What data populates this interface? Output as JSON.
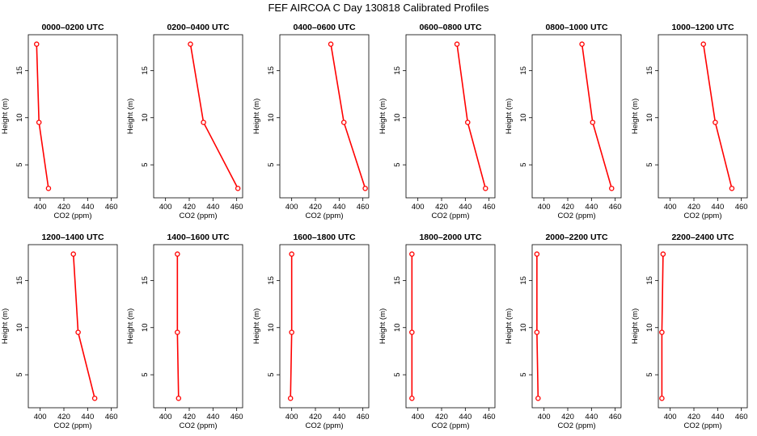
{
  "title": "FEF AIRCOA C  Day 130818  Calibrated Profiles",
  "colors": {
    "series": "#ff0000",
    "axis": "#000000",
    "background": "#ffffff"
  },
  "chart_data": [
    {
      "type": "line",
      "title": "0000–0200 UTC",
      "xlabel": "CO2 (ppm)",
      "ylabel": "Height (m)",
      "xlim": [
        390,
        465
      ],
      "ylim": [
        1.5,
        18.8
      ],
      "xticks": [
        400,
        420,
        440,
        460
      ],
      "yticks": [
        5,
        10,
        15
      ],
      "heights": [
        2.5,
        9.5,
        17.8
      ],
      "values": [
        407,
        399,
        397
      ]
    },
    {
      "type": "line",
      "title": "0200–0400 UTC",
      "xlabel": "CO2 (ppm)",
      "ylabel": "Height (m)",
      "xlim": [
        390,
        465
      ],
      "ylim": [
        1.5,
        18.8
      ],
      "xticks": [
        400,
        420,
        440,
        460
      ],
      "yticks": [
        5,
        10,
        15
      ],
      "heights": [
        2.5,
        9.5,
        17.8
      ],
      "values": [
        461,
        432,
        421
      ]
    },
    {
      "type": "line",
      "title": "0400–0600 UTC",
      "xlabel": "CO2 (ppm)",
      "ylabel": "Height (m)",
      "xlim": [
        390,
        465
      ],
      "ylim": [
        1.5,
        18.8
      ],
      "xticks": [
        400,
        420,
        440,
        460
      ],
      "yticks": [
        5,
        10,
        15
      ],
      "heights": [
        2.5,
        9.5,
        17.8
      ],
      "values": [
        462,
        444,
        433
      ]
    },
    {
      "type": "line",
      "title": "0600–0800 UTC",
      "xlabel": "CO2 (ppm)",
      "ylabel": "Height (m)",
      "xlim": [
        390,
        465
      ],
      "ylim": [
        1.5,
        18.8
      ],
      "xticks": [
        400,
        420,
        440,
        460
      ],
      "yticks": [
        5,
        10,
        15
      ],
      "heights": [
        2.5,
        9.5,
        17.8
      ],
      "values": [
        457,
        442,
        433
      ]
    },
    {
      "type": "line",
      "title": "0800–1000 UTC",
      "xlabel": "CO2 (ppm)",
      "ylabel": "Height (m)",
      "xlim": [
        390,
        465
      ],
      "ylim": [
        1.5,
        18.8
      ],
      "xticks": [
        400,
        420,
        440,
        460
      ],
      "yticks": [
        5,
        10,
        15
      ],
      "heights": [
        2.5,
        9.5,
        17.8
      ],
      "values": [
        457,
        441,
        432
      ]
    },
    {
      "type": "line",
      "title": "1000–1200 UTC",
      "xlabel": "CO2 (ppm)",
      "ylabel": "Height (m)",
      "xlim": [
        390,
        465
      ],
      "ylim": [
        1.5,
        18.8
      ],
      "xticks": [
        400,
        420,
        440,
        460
      ],
      "yticks": [
        5,
        10,
        15
      ],
      "heights": [
        2.5,
        9.5,
        17.8
      ],
      "values": [
        452,
        438,
        428
      ]
    },
    {
      "type": "line",
      "title": "1200–1400 UTC",
      "xlabel": "CO2 (ppm)",
      "ylabel": "Height (m)",
      "xlim": [
        390,
        465
      ],
      "ylim": [
        1.5,
        18.8
      ],
      "xticks": [
        400,
        420,
        440,
        460
      ],
      "yticks": [
        5,
        10,
        15
      ],
      "heights": [
        2.5,
        9.5,
        17.8
      ],
      "values": [
        446,
        432,
        428
      ]
    },
    {
      "type": "line",
      "title": "1400–1600 UTC",
      "xlabel": "CO2 (ppm)",
      "ylabel": "Height (m)",
      "xlim": [
        390,
        465
      ],
      "ylim": [
        1.5,
        18.8
      ],
      "xticks": [
        400,
        420,
        440,
        460
      ],
      "yticks": [
        5,
        10,
        15
      ],
      "heights": [
        2.5,
        9.5,
        17.8
      ],
      "values": [
        411,
        410,
        410
      ]
    },
    {
      "type": "line",
      "title": "1600–1800 UTC",
      "xlabel": "CO2 (ppm)",
      "ylabel": "Height (m)",
      "xlim": [
        390,
        465
      ],
      "ylim": [
        1.5,
        18.8
      ],
      "xticks": [
        400,
        420,
        440,
        460
      ],
      "yticks": [
        5,
        10,
        15
      ],
      "heights": [
        2.5,
        9.5,
        17.8
      ],
      "values": [
        399,
        400,
        400
      ]
    },
    {
      "type": "line",
      "title": "1800–2000 UTC",
      "xlabel": "CO2 (ppm)",
      "ylabel": "Height (m)",
      "xlim": [
        390,
        465
      ],
      "ylim": [
        1.5,
        18.8
      ],
      "xticks": [
        400,
        420,
        440,
        460
      ],
      "yticks": [
        5,
        10,
        15
      ],
      "heights": [
        2.5,
        9.5,
        17.8
      ],
      "values": [
        395,
        395,
        395
      ]
    },
    {
      "type": "line",
      "title": "2000–2200 UTC",
      "xlabel": "CO2 (ppm)",
      "ylabel": "Height (m)",
      "xlim": [
        390,
        465
      ],
      "ylim": [
        1.5,
        18.8
      ],
      "xticks": [
        400,
        420,
        440,
        460
      ],
      "yticks": [
        5,
        10,
        15
      ],
      "heights": [
        2.5,
        9.5,
        17.8
      ],
      "values": [
        395,
        394,
        394
      ]
    },
    {
      "type": "line",
      "title": "2200–2400 UTC",
      "xlabel": "CO2 (ppm)",
      "ylabel": "Height (m)",
      "xlim": [
        390,
        465
      ],
      "ylim": [
        1.5,
        18.8
      ],
      "xticks": [
        400,
        420,
        440,
        460
      ],
      "yticks": [
        5,
        10,
        15
      ],
      "heights": [
        2.5,
        9.5,
        17.8
      ],
      "values": [
        393,
        393,
        394
      ]
    }
  ]
}
